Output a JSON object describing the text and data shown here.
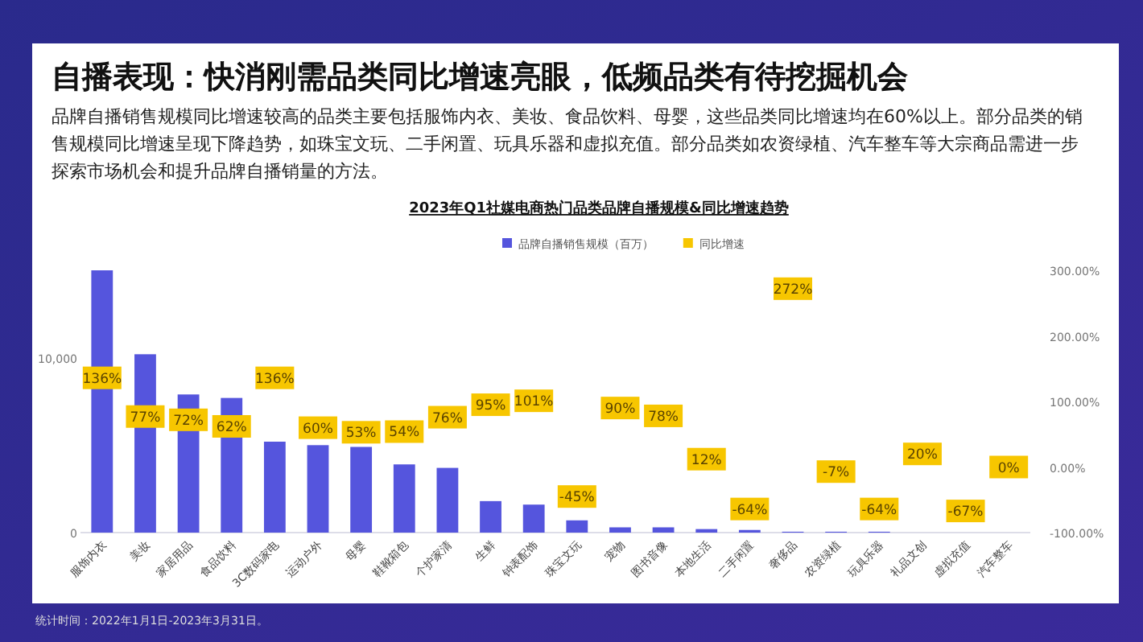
{
  "chart_data": {
    "type": "bar",
    "title": "自播表现：快消刚需品类同比增速亮眼，低频品类有待挖掘机会",
    "subtitle": "品牌自播销售规模同比增速较高的品类主要包括服饰内衣、美妆、食品饮料、母婴，这些品类同比增速均在60%以上。部分品类的销售规模同比增速呈现下降趋势，如珠宝文玩、二手闲置、玩具乐器和虚拟充值。部分品类如农资绿植、汽车整车等大宗商品需进一步探索市场机会和提升品牌自播销量的方法。",
    "annotations": [
      "2023年Q1社媒电商热门品类品牌自播规模&同比增速趋势",
      "统计时间：2022年1月1日-2023年3月31日。"
    ],
    "categories": [
      "服饰内衣",
      "美妆",
      "家居用品",
      "食品饮料",
      "3C数码家电",
      "运动户外",
      "母婴",
      "鞋靴箱包",
      "个护家清",
      "生鲜",
      "钟表配饰",
      "珠宝文玩",
      "宠物",
      "图书音像",
      "本地生活",
      "二手闲置",
      "奢侈品",
      "农资绿植",
      "玩具乐器",
      "礼品文创",
      "虚拟充值",
      "汽车整车"
    ],
    "series": [
      {
        "name": "品牌自播销售规模（百万）",
        "color": "#5555dd",
        "values": [
          15000,
          10200,
          7900,
          7700,
          5200,
          5000,
          4900,
          3900,
          3700,
          1800,
          1600,
          700,
          300,
          300,
          200,
          150,
          50,
          50,
          50,
          null,
          null,
          null
        ]
      },
      {
        "name": "同比增速",
        "type": "scatter",
        "axis": "y2",
        "color": "#f7c600",
        "values": [
          136,
          77,
          72,
          62,
          136,
          60,
          53,
          54,
          76,
          95,
          101,
          -45,
          90,
          78,
          12,
          -64,
          272,
          -7,
          -64,
          20,
          -67,
          0
        ],
        "value_labels": [
          "136%",
          "77%",
          "72%",
          "62%",
          "136%",
          "60%",
          "53%",
          "54%",
          "76%",
          "95%",
          "101%",
          "-45%",
          "90%",
          "78%",
          "12%",
          "-64%",
          "272%",
          "-7%",
          "-64%",
          "20%",
          "-67%",
          "0%"
        ]
      }
    ],
    "ylim": [
      0,
      15000
    ],
    "yticks": [
      0,
      {
        "value": 10000,
        "label": "10,000"
      }
    ],
    "y2lim": [
      -100,
      300
    ],
    "y2ticks": [
      {
        "value": -100,
        "label": "-100.00%"
      },
      {
        "value": 0,
        "label": "0.00%"
      },
      {
        "value": 100,
        "label": "100.00%"
      },
      {
        "value": 200,
        "label": "200.00%"
      },
      {
        "value": 300,
        "label": "300.00%"
      }
    ],
    "legend": "top"
  }
}
